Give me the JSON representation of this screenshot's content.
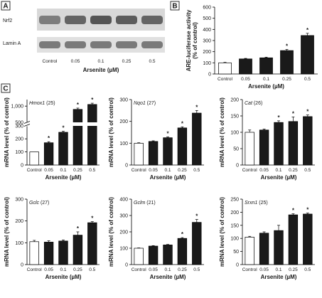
{
  "panel_labels": [
    "A",
    "B",
    "C"
  ],
  "blot": {
    "rows": [
      "Nrf2",
      "Lamin A"
    ],
    "categories": [
      "Control",
      "0.05",
      "0.1",
      "0.25",
      "0.5"
    ],
    "xlabel": "Arsenite (µM)"
  },
  "chart_data": [
    {
      "id": "B",
      "type": "bar",
      "title": "",
      "ylabel": "ARE-luciferase activity\n(% of control)",
      "xlabel": "Arsenite (µM)",
      "categories": [
        "Control",
        "0.05",
        "0.1",
        "0.25",
        "0.5"
      ],
      "values": [
        100,
        135,
        145,
        210,
        345
      ],
      "errors": [
        4,
        5,
        6,
        10,
        20
      ],
      "significant": [
        false,
        false,
        false,
        true,
        true
      ],
      "ylim": [
        0,
        600
      ],
      "yticks": [
        0,
        100,
        200,
        300,
        400,
        500,
        600
      ]
    },
    {
      "id": "C1",
      "type": "bar",
      "title": "Hmox1",
      "n": "(25)",
      "ylabel": "mRNA level (% of control)",
      "xlabel": "Arsenite (µM)",
      "categories": [
        "Control",
        "0.05",
        "0.1",
        "0.25",
        "0.5"
      ],
      "values": [
        100,
        170,
        250,
        900,
        1050
      ],
      "errors": [
        0,
        8,
        8,
        40,
        40
      ],
      "significant": [
        false,
        true,
        true,
        true,
        true
      ],
      "broken_axis": true,
      "ylim": [
        0,
        1200
      ],
      "yticks": [
        0,
        100,
        200,
        300,
        500,
        1000
      ],
      "ytick_labels": [
        "0",
        "100",
        "200",
        "300",
        "500",
        "1,000"
      ]
    },
    {
      "id": "C2",
      "type": "bar",
      "title": "Nqo1",
      "n": "(27)",
      "ylabel": "mRNA level (% of control)",
      "xlabel": "Arsenite (µM)",
      "categories": [
        "Control",
        "0.05",
        "0.1",
        "0.25",
        "0.5"
      ],
      "values": [
        100,
        108,
        125,
        170,
        238
      ],
      "errors": [
        2,
        3,
        4,
        5,
        12
      ],
      "significant": [
        false,
        false,
        true,
        true,
        true
      ],
      "ylim": [
        0,
        300
      ],
      "yticks": [
        0,
        100,
        200,
        300
      ]
    },
    {
      "id": "C3",
      "type": "bar",
      "title": "Cat",
      "n": "(26)",
      "ylabel": "mRNA level (% of control)",
      "xlabel": "Arsenite (µM)",
      "categories": [
        "Control",
        "0.05",
        "0.1",
        "0.25",
        "0.5"
      ],
      "values": [
        100,
        107,
        130,
        133,
        148
      ],
      "errors": [
        7,
        3,
        5,
        14,
        5
      ],
      "significant": [
        false,
        false,
        true,
        true,
        true
      ],
      "ylim": [
        0,
        200
      ],
      "yticks": [
        0,
        50,
        100,
        150,
        200
      ]
    },
    {
      "id": "C4",
      "type": "bar",
      "title": "Gclc",
      "n": "(27)",
      "ylabel": "mRNA level (% of control)",
      "xlabel": "Arsenite (µM)",
      "categories": [
        "Control",
        "0.05",
        "0.1",
        "0.25",
        "0.5"
      ],
      "values": [
        105,
        103,
        108,
        135,
        192
      ],
      "errors": [
        6,
        6,
        5,
        15,
        5
      ],
      "significant": [
        false,
        false,
        false,
        true,
        true
      ],
      "ylim": [
        0,
        300
      ],
      "yticks": [
        0,
        100,
        200,
        300
      ]
    },
    {
      "id": "C5",
      "type": "bar",
      "title": "Gclm",
      "n": "(21)",
      "ylabel": "mRNA level (% of control)",
      "xlabel": "Arsenite (µM)",
      "categories": [
        "Control",
        "0.05",
        "0.1",
        "0.25",
        "0.5"
      ],
      "values": [
        100,
        113,
        120,
        160,
        258
      ],
      "errors": [
        2,
        3,
        3,
        5,
        18
      ],
      "significant": [
        false,
        false,
        false,
        true,
        true
      ],
      "ylim": [
        0,
        400
      ],
      "yticks": [
        0,
        100,
        200,
        300,
        400
      ]
    },
    {
      "id": "C6",
      "type": "bar",
      "title": "Srxn1",
      "n": "(25)",
      "ylabel": "mRNA level (% of control)",
      "xlabel": "Arsenite (µM)",
      "categories": [
        "Control",
        "0.05",
        "0.1",
        "0.25",
        "0.5"
      ],
      "values": [
        105,
        120,
        130,
        190,
        193
      ],
      "errors": [
        3,
        5,
        20,
        4,
        4
      ],
      "significant": [
        false,
        false,
        false,
        true,
        true
      ],
      "ylim": [
        0,
        250
      ],
      "yticks": [
        0,
        50,
        100,
        150,
        200,
        250
      ]
    }
  ]
}
